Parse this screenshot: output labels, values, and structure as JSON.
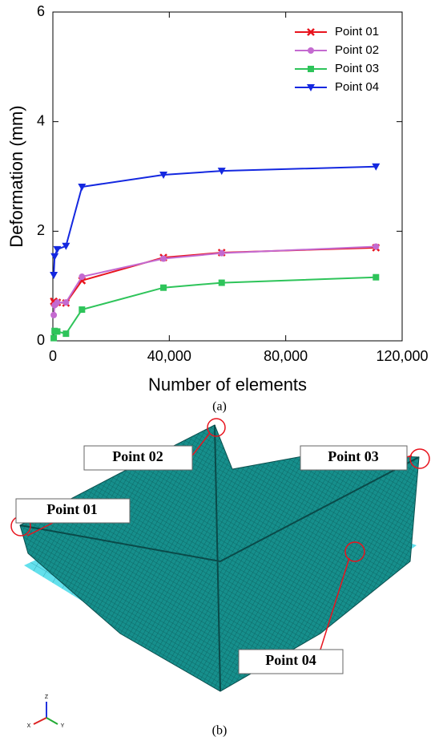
{
  "chart_data": {
    "type": "line",
    "xlabel": "Number of elements",
    "ylabel": "Deformation (mm)",
    "x": [
      300,
      600,
      1500,
      4500,
      10000,
      38000,
      58000,
      111000
    ],
    "series": [
      {
        "name": "Point 01",
        "color": "#e8141e",
        "marker": "x",
        "values": [
          0.72,
          0.69,
          0.7,
          0.69,
          1.1,
          1.52,
          1.61,
          1.7
        ]
      },
      {
        "name": "Point 02",
        "color": "#c46ad0",
        "marker": "circle",
        "values": [
          0.47,
          0.65,
          0.7,
          0.7,
          1.17,
          1.5,
          1.6,
          1.72
        ]
      },
      {
        "name": "Point 03",
        "color": "#2ec45a",
        "marker": "square",
        "values": [
          0.05,
          0.18,
          0.17,
          0.13,
          0.57,
          0.97,
          1.06,
          1.16
        ]
      },
      {
        "name": "Point 04",
        "color": "#1428e0",
        "marker": "triangle-down",
        "values": [
          1.2,
          1.54,
          1.67,
          1.73,
          2.81,
          3.03,
          3.1,
          3.18
        ]
      }
    ],
    "xlim": [
      0,
      120000
    ],
    "xticks": [
      0,
      {
        "value": 40000,
        "label": "40,000"
      },
      {
        "value": 80000,
        "label": "80,000"
      },
      {
        "value": 120000,
        "label": "120,000"
      }
    ],
    "ylim": [
      0,
      6
    ],
    "yticks": [
      0,
      2,
      4,
      6
    ],
    "grid": false,
    "legend": "upper-right"
  },
  "figure": {
    "panel_a_label": "(a)",
    "panel_b_label": "(b)",
    "model_labels": [
      "Point 01",
      "Point 02",
      "Point 03",
      "Point 04"
    ],
    "axis_triad": [
      "X",
      "Y",
      "Z"
    ]
  }
}
